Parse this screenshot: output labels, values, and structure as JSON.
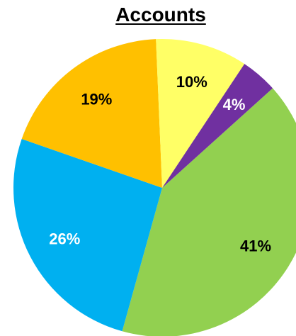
{
  "chart_data": {
    "type": "pie",
    "title": "Accounts",
    "slices": [
      {
        "label": "41%",
        "value": 41,
        "color": "#92D050",
        "label_color": "#000000"
      },
      {
        "label": "26%",
        "value": 26,
        "color": "#00B0F0",
        "label_color": "#ffffff"
      },
      {
        "label": "19%",
        "value": 19,
        "color": "#FFC000",
        "label_color": "#000000"
      },
      {
        "label": "10%",
        "value": 10,
        "color": "#FFFF66",
        "label_color": "#000000"
      },
      {
        "label": "4%",
        "value": 4,
        "color": "#7030A0",
        "label_color": "#ffffff"
      }
    ],
    "legend": "none"
  }
}
